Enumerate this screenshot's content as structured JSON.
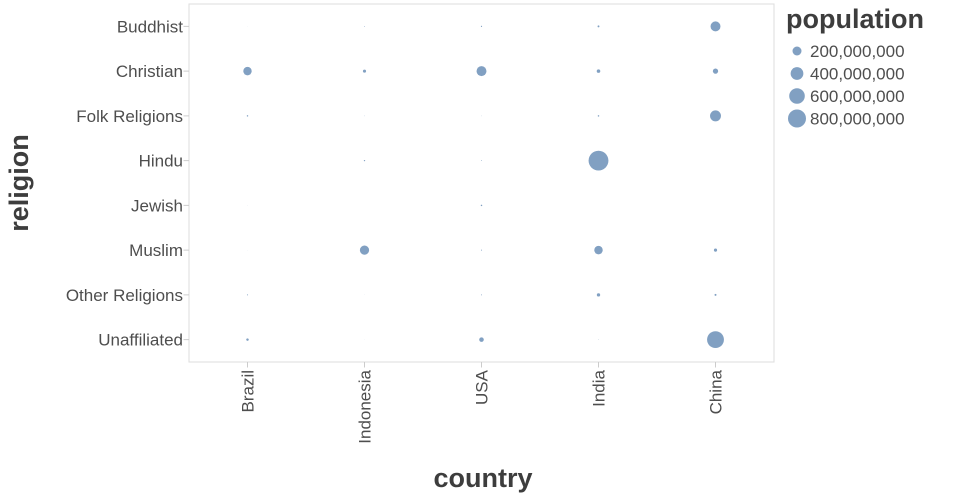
{
  "chart_data": {
    "type": "scatter",
    "subtype": "bubble",
    "xlabel": "country",
    "ylabel": "religion",
    "x_categories": [
      "Brazil",
      "Indonesia",
      "USA",
      "India",
      "China"
    ],
    "y_categories": [
      "Buddhist",
      "Christian",
      "Folk Religions",
      "Hindu",
      "Jewish",
      "Muslim",
      "Other Religions",
      "Unaffiliated"
    ],
    "legend": {
      "title": "population",
      "entries": [
        {
          "label": "200,000,000",
          "value": 200000000
        },
        {
          "label": "400,000,000",
          "value": 400000000
        },
        {
          "label": "600,000,000",
          "value": 600000000
        },
        {
          "label": "800,000,000",
          "value": 800000000
        }
      ],
      "position": "top-right",
      "scale": "area-proportional"
    },
    "mark": {
      "color": "#4c78a8",
      "opacity": 0.7,
      "radius_at_800m_px": 9
    },
    "grid": false,
    "points": [
      {
        "x": "Brazil",
        "y": "Buddhist",
        "size": 250000
      },
      {
        "x": "Brazil",
        "y": "Christian",
        "size": 173300000
      },
      {
        "x": "Brazil",
        "y": "Folk Religions",
        "size": 5540000
      },
      {
        "x": "Brazil",
        "y": "Hindu",
        "size": 10000
      },
      {
        "x": "Brazil",
        "y": "Jewish",
        "size": 310000
      },
      {
        "x": "Brazil",
        "y": "Muslim",
        "size": 200000
      },
      {
        "x": "Brazil",
        "y": "Other Religions",
        "size": 3080000
      },
      {
        "x": "Brazil",
        "y": "Unaffiliated",
        "size": 15410000
      },
      {
        "x": "Indonesia",
        "y": "Buddhist",
        "size": 1720000
      },
      {
        "x": "Indonesia",
        "y": "Christian",
        "size": 23660000
      },
      {
        "x": "Indonesia",
        "y": "Folk Religions",
        "size": 750000
      },
      {
        "x": "Indonesia",
        "y": "Hindu",
        "size": 4050000
      },
      {
        "x": "Indonesia",
        "y": "Jewish",
        "size": 10000
      },
      {
        "x": "Indonesia",
        "y": "Muslim",
        "size": 209120000
      },
      {
        "x": "Indonesia",
        "y": "Other Religions",
        "size": 340000
      },
      {
        "x": "Indonesia",
        "y": "Unaffiliated",
        "size": 240000
      },
      {
        "x": "USA",
        "y": "Buddhist",
        "size": 3570000
      },
      {
        "x": "USA",
        "y": "Christian",
        "size": 243060000
      },
      {
        "x": "USA",
        "y": "Folk Religions",
        "size": 630000
      },
      {
        "x": "USA",
        "y": "Hindu",
        "size": 1790000
      },
      {
        "x": "USA",
        "y": "Jewish",
        "size": 5690000
      },
      {
        "x": "USA",
        "y": "Muslim",
        "size": 2770000
      },
      {
        "x": "USA",
        "y": "Other Religions",
        "size": 1900000
      },
      {
        "x": "USA",
        "y": "Unaffiliated",
        "size": 50980000
      },
      {
        "x": "India",
        "y": "Buddhist",
        "size": 9250000
      },
      {
        "x": "India",
        "y": "Christian",
        "size": 31130000
      },
      {
        "x": "India",
        "y": "Folk Religions",
        "size": 5840000
      },
      {
        "x": "India",
        "y": "Hindu",
        "size": 973750000
      },
      {
        "x": "India",
        "y": "Jewish",
        "size": 10000
      },
      {
        "x": "India",
        "y": "Muslim",
        "size": 176190000
      },
      {
        "x": "India",
        "y": "Other Religions",
        "size": 27560000
      },
      {
        "x": "India",
        "y": "Unaffiliated",
        "size": 870000
      },
      {
        "x": "China",
        "y": "Buddhist",
        "size": 244130000
      },
      {
        "x": "China",
        "y": "Christian",
        "size": 68410000
      },
      {
        "x": "China",
        "y": "Folk Religions",
        "size": 294320000
      },
      {
        "x": "China",
        "y": "Hindu",
        "size": 20000
      },
      {
        "x": "China",
        "y": "Jewish",
        "size": 10000
      },
      {
        "x": "China",
        "y": "Muslim",
        "size": 24690000
      },
      {
        "x": "China",
        "y": "Other Religions",
        "size": 9900000
      },
      {
        "x": "China",
        "y": "Unaffiliated",
        "size": 700680000
      }
    ]
  },
  "colors": {
    "accent": "#4c78a8",
    "axis_label": "#4e4e4e",
    "title": "#3d3d3d",
    "border": "#dddddd",
    "tick": "#cccccc",
    "background": "#ffffff"
  }
}
